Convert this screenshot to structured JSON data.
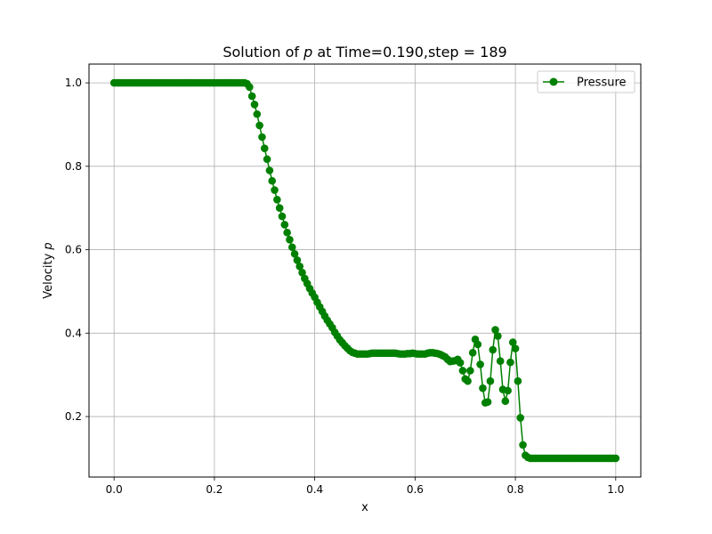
{
  "chart_data": {
    "type": "line",
    "title_prefix": "Solution of ",
    "title_var": "p",
    "title_suffix": " at Time=0.190,step = 189",
    "xlabel": "x",
    "ylabel_prefix": "Velocity ",
    "ylabel_var": "p",
    "xlim": [
      -0.05,
      1.05
    ],
    "ylim": [
      0.055,
      1.045
    ],
    "xticks": [
      0.0,
      0.2,
      0.4,
      0.6,
      0.8,
      1.0
    ],
    "xtick_labels": [
      "0.0",
      "0.2",
      "0.4",
      "0.6",
      "0.8",
      "1.0"
    ],
    "yticks": [
      0.2,
      0.4,
      0.6,
      0.8,
      1.0
    ],
    "ytick_labels": [
      "0.2",
      "0.4",
      "0.6",
      "0.8",
      "1.0"
    ],
    "grid": true,
    "legend_position": "top-right",
    "series": [
      {
        "name": "Pressure",
        "color": "#008000",
        "marker": "circle",
        "x": [
          0.0,
          0.005,
          0.01,
          0.015,
          0.02,
          0.025,
          0.03,
          0.035,
          0.04,
          0.045,
          0.05,
          0.055,
          0.06,
          0.065,
          0.07,
          0.075,
          0.08,
          0.085,
          0.09,
          0.095,
          0.1,
          0.105,
          0.11,
          0.115,
          0.12,
          0.125,
          0.13,
          0.135,
          0.14,
          0.145,
          0.15,
          0.155,
          0.16,
          0.165,
          0.17,
          0.175,
          0.18,
          0.185,
          0.19,
          0.195,
          0.2,
          0.205,
          0.21,
          0.215,
          0.22,
          0.225,
          0.23,
          0.235,
          0.24,
          0.245,
          0.25,
          0.255,
          0.26,
          0.265,
          0.27,
          0.275,
          0.28,
          0.285,
          0.29,
          0.295,
          0.3,
          0.305,
          0.31,
          0.315,
          0.32,
          0.325,
          0.33,
          0.335,
          0.34,
          0.345,
          0.35,
          0.355,
          0.36,
          0.365,
          0.37,
          0.375,
          0.38,
          0.385,
          0.39,
          0.395,
          0.4,
          0.405,
          0.41,
          0.415,
          0.42,
          0.425,
          0.43,
          0.435,
          0.44,
          0.445,
          0.45,
          0.455,
          0.46,
          0.465,
          0.47,
          0.475,
          0.48,
          0.485,
          0.49,
          0.495,
          0.5,
          0.505,
          0.51,
          0.515,
          0.52,
          0.525,
          0.53,
          0.535,
          0.54,
          0.545,
          0.55,
          0.555,
          0.56,
          0.565,
          0.57,
          0.575,
          0.58,
          0.585,
          0.59,
          0.595,
          0.6,
          0.605,
          0.61,
          0.615,
          0.62,
          0.625,
          0.63,
          0.635,
          0.64,
          0.645,
          0.65,
          0.655,
          0.66,
          0.665,
          0.67,
          0.675,
          0.68,
          0.685,
          0.69,
          0.695,
          0.7,
          0.705,
          0.71,
          0.715,
          0.72,
          0.725,
          0.73,
          0.735,
          0.74,
          0.745,
          0.75,
          0.755,
          0.76,
          0.765,
          0.77,
          0.775,
          0.78,
          0.785,
          0.79,
          0.795,
          0.8,
          0.805,
          0.81,
          0.815,
          0.82,
          0.825,
          0.83,
          0.835,
          0.84,
          0.845,
          0.85,
          0.855,
          0.86,
          0.865,
          0.87,
          0.875,
          0.88,
          0.885,
          0.89,
          0.895,
          0.9,
          0.905,
          0.91,
          0.915,
          0.92,
          0.925,
          0.93,
          0.935,
          0.94,
          0.945,
          0.95,
          0.955,
          0.96,
          0.965,
          0.97,
          0.975,
          0.98,
          0.985,
          0.99,
          0.995,
          1.0
        ],
        "y": [
          1.0,
          1.0,
          1.0,
          1.0,
          1.0,
          1.0,
          1.0,
          1.0,
          1.0,
          1.0,
          1.0,
          1.0,
          1.0,
          1.0,
          1.0,
          1.0,
          1.0,
          1.0,
          1.0,
          1.0,
          1.0,
          1.0,
          1.0,
          1.0,
          1.0,
          1.0,
          1.0,
          1.0,
          1.0,
          1.0,
          1.0,
          1.0,
          1.0,
          1.0,
          1.0,
          1.0,
          1.0,
          1.0,
          1.0,
          1.0,
          1.0,
          1.0,
          1.0,
          1.0,
          1.0,
          1.0,
          1.0,
          1.0,
          1.0,
          1.0,
          1.0,
          1.0,
          1.0,
          0.998,
          0.99,
          0.968,
          0.948,
          0.925,
          0.898,
          0.87,
          0.843,
          0.817,
          0.79,
          0.765,
          0.743,
          0.72,
          0.7,
          0.68,
          0.66,
          0.641,
          0.624,
          0.606,
          0.59,
          0.575,
          0.56,
          0.545,
          0.531,
          0.519,
          0.507,
          0.496,
          0.486,
          0.474,
          0.463,
          0.452,
          0.441,
          0.431,
          0.422,
          0.413,
          0.402,
          0.393,
          0.384,
          0.377,
          0.37,
          0.364,
          0.358,
          0.354,
          0.352,
          0.35,
          0.35,
          0.35,
          0.35,
          0.35,
          0.351,
          0.352,
          0.352,
          0.352,
          0.352,
          0.352,
          0.352,
          0.352,
          0.352,
          0.352,
          0.352,
          0.351,
          0.35,
          0.35,
          0.35,
          0.351,
          0.351,
          0.352,
          0.351,
          0.35,
          0.35,
          0.35,
          0.35,
          0.352,
          0.353,
          0.353,
          0.352,
          0.351,
          0.349,
          0.346,
          0.343,
          0.337,
          0.332,
          0.333,
          0.334,
          0.337,
          0.329,
          0.31,
          0.29,
          0.285,
          0.31,
          0.353,
          0.385,
          0.373,
          0.325,
          0.268,
          0.233,
          0.235,
          0.285,
          0.36,
          0.408,
          0.393,
          0.333,
          0.265,
          0.237,
          0.262,
          0.33,
          0.378,
          0.363,
          0.285,
          0.197,
          0.132,
          0.107,
          0.102,
          0.1,
          0.1,
          0.1,
          0.1,
          0.1,
          0.1,
          0.1,
          0.1,
          0.1,
          0.1,
          0.1,
          0.1,
          0.1,
          0.1,
          0.1,
          0.1,
          0.1,
          0.1,
          0.1,
          0.1,
          0.1,
          0.1,
          0.1,
          0.1,
          0.1,
          0.1,
          0.1,
          0.1,
          0.1,
          0.1,
          0.1,
          0.1,
          0.1,
          0.1,
          0.1
        ]
      }
    ]
  }
}
